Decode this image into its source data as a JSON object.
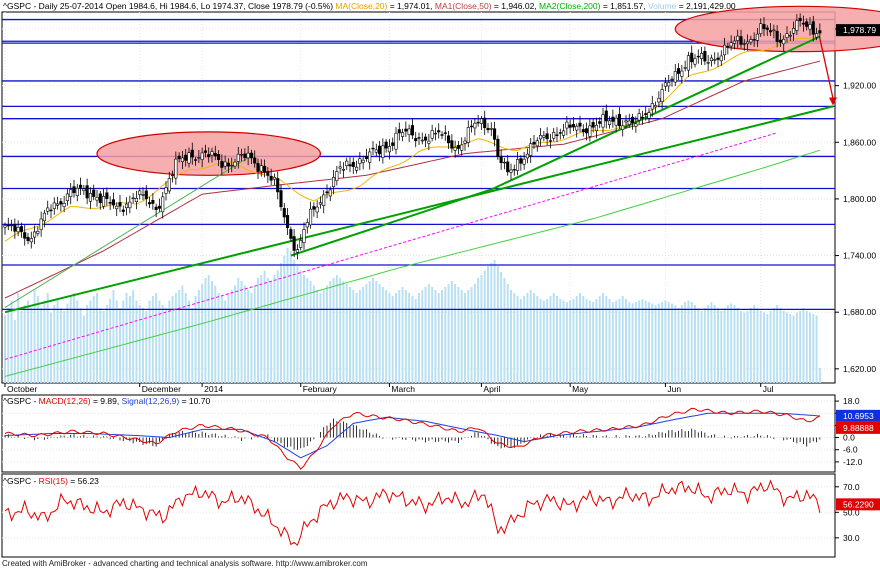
{
  "chart_data": [
    {
      "type": "candlestick",
      "symbol": "^GSPC",
      "header": {
        "symbol": "^GSPC",
        "desc": " - Daily 25-07-2014 Open 1984.6, Hi 1984.6, Lo 1974.37, Close 1978.79 (-0.5%) ",
        "ma_label": "MA(Close,20)",
        "ma_value": " = 1,974.01, ",
        "ma1_label": "MA1(Close,50)",
        "ma1_value": " = 1,946.02, ",
        "ma2_label": "MA2(Close,200)",
        "ma2_value": " = 1,851.57, ",
        "vol_label": "Volume",
        "vol_value": " = 2,191,429.00"
      },
      "last_close_label": "1,978.79",
      "y_ticks": [
        "1,980.00",
        "1,920.00",
        "1,860.00",
        "1,800.00",
        "1,740.00",
        "1,680.00",
        "1,620.00"
      ],
      "y_tick_values": [
        1980,
        1920,
        1860,
        1800,
        1740,
        1680,
        1620
      ],
      "ylim": [
        1605,
        1998
      ],
      "x_month_labels": [
        {
          "label": "October",
          "day": 0
        },
        {
          "label": "December",
          "day": 41
        },
        {
          "label": "2014",
          "day": 60
        },
        {
          "label": "February",
          "day": 90
        },
        {
          "label": "March",
          "day": 117
        },
        {
          "label": "April",
          "day": 145
        },
        {
          "label": "May",
          "day": 172
        },
        {
          "label": "Jun",
          "day": 201
        },
        {
          "label": "Jul",
          "day": 230
        }
      ],
      "horizontal_levels": [
        1990,
        1967,
        1965,
        1925,
        1898,
        1885,
        1845,
        1811,
        1773,
        1730,
        1683
      ],
      "close_path": [
        [
          0,
          1770
        ],
        [
          8,
          1760
        ],
        [
          14,
          1790
        ],
        [
          20,
          1808
        ],
        [
          28,
          1805
        ],
        [
          34,
          1788
        ],
        [
          40,
          1805
        ],
        [
          46,
          1790
        ],
        [
          52,
          1835
        ],
        [
          56,
          1848
        ],
        [
          62,
          1845
        ],
        [
          68,
          1838
        ],
        [
          74,
          1845
        ],
        [
          78,
          1835
        ],
        [
          82,
          1815
        ],
        [
          86,
          1770
        ],
        [
          89,
          1745
        ],
        [
          92,
          1775
        ],
        [
          96,
          1800
        ],
        [
          102,
          1830
        ],
        [
          108,
          1842
        ],
        [
          114,
          1850
        ],
        [
          120,
          1870
        ],
        [
          126,
          1865
        ],
        [
          132,
          1868
        ],
        [
          138,
          1855
        ],
        [
          144,
          1882
        ],
        [
          148,
          1878
        ],
        [
          150,
          1845
        ],
        [
          153,
          1825
        ],
        [
          156,
          1840
        ],
        [
          162,
          1860
        ],
        [
          168,
          1872
        ],
        [
          174,
          1875
        ],
        [
          180,
          1878
        ],
        [
          186,
          1885
        ],
        [
          192,
          1878
        ],
        [
          198,
          1905
        ],
        [
          204,
          1930
        ],
        [
          208,
          1950
        ],
        [
          214,
          1945
        ],
        [
          220,
          1962
        ],
        [
          226,
          1968
        ],
        [
          230,
          1980
        ],
        [
          236,
          1970
        ],
        [
          242,
          1985
        ],
        [
          248,
          1978.79
        ]
      ],
      "ma20_path": [
        [
          0,
          1755
        ],
        [
          20,
          1790
        ],
        [
          40,
          1795
        ],
        [
          56,
          1832
        ],
        [
          70,
          1838
        ],
        [
          84,
          1818
        ],
        [
          94,
          1798
        ],
        [
          108,
          1815
        ],
        [
          126,
          1850
        ],
        [
          144,
          1862
        ],
        [
          156,
          1852
        ],
        [
          174,
          1868
        ],
        [
          192,
          1880
        ],
        [
          208,
          1928
        ],
        [
          226,
          1955
        ],
        [
          248,
          1974.01
        ]
      ],
      "ma50_path": [
        [
          0,
          1695
        ],
        [
          30,
          1745
        ],
        [
          60,
          1805
        ],
        [
          84,
          1815
        ],
        [
          110,
          1825
        ],
        [
          140,
          1848
        ],
        [
          170,
          1858
        ],
        [
          200,
          1885
        ],
        [
          225,
          1925
        ],
        [
          248,
          1946.02
        ]
      ],
      "ma200_path": [
        [
          0,
          1612
        ],
        [
          60,
          1668
        ],
        [
          120,
          1727
        ],
        [
          180,
          1780
        ],
        [
          230,
          1832
        ],
        [
          248,
          1851.57
        ]
      ],
      "trendlines": [
        {
          "color": "#00a000",
          "width": 2,
          "points": [
            [
              0,
              1680
            ],
            [
              252,
              1898
            ]
          ]
        },
        {
          "color": "#00a000",
          "width": 2,
          "points": [
            [
              87,
              1740
            ],
            [
              148,
              1810
            ],
            [
              248,
              1972
            ]
          ]
        },
        {
          "color": "#4caf50",
          "width": 1,
          "points": [
            [
              0,
              1685
            ],
            [
              76,
              1848
            ]
          ]
        },
        {
          "color": "#ff00ff",
          "width": 1,
          "dash": true,
          "points": [
            [
              0,
              1630
            ],
            [
              235,
              1870
            ]
          ]
        }
      ],
      "ellipses": [
        [
          62,
          1848,
          34,
          23
        ],
        [
          242,
          1980,
          38,
          24
        ]
      ],
      "arrow": {
        "from": [
          248,
          1970
        ],
        "to": [
          252,
          1900
        ]
      },
      "volume_values": [
        0.45,
        0.5,
        0.55,
        0.42,
        0.6,
        0.48,
        0.52,
        0.55,
        0.5,
        0.62,
        0.58,
        0.5,
        0.55,
        0.6,
        0.47,
        0.52,
        0.56,
        0.5,
        0.48,
        0.53,
        0.58,
        0.6,
        0.55,
        0.5,
        0.45,
        0.52,
        0.55,
        0.58,
        0.6,
        0.5,
        0.48,
        0.52,
        0.56,
        0.62,
        0.55,
        0.5,
        0.55,
        0.6,
        0.58,
        0.62,
        0.55,
        0.52,
        0.5,
        0.48,
        0.55,
        0.58,
        0.6,
        0.55,
        0.52,
        0.5,
        0.55,
        0.58,
        0.6,
        0.62,
        0.65,
        0.6,
        0.55,
        0.5,
        0.58,
        0.62,
        0.66,
        0.7,
        0.72,
        0.68,
        0.65,
        0.6,
        0.58,
        0.55,
        0.6,
        0.62,
        0.65,
        0.7,
        0.68,
        0.65,
        0.62,
        0.6,
        0.65,
        0.7,
        0.72,
        0.75,
        0.7,
        0.68,
        0.72,
        0.75,
        0.8,
        0.85,
        0.9,
        0.88,
        0.82,
        0.78,
        0.75,
        0.72,
        0.7,
        0.68,
        0.65,
        0.62,
        0.6,
        0.62,
        0.65,
        0.68,
        0.7,
        0.72,
        0.7,
        0.68,
        0.66,
        0.64,
        0.62,
        0.6,
        0.62,
        0.64,
        0.66,
        0.68,
        0.7,
        0.68,
        0.66,
        0.64,
        0.62,
        0.6,
        0.58,
        0.6,
        0.62,
        0.64,
        0.62,
        0.6,
        0.58,
        0.56,
        0.6,
        0.62,
        0.64,
        0.66,
        0.64,
        0.62,
        0.6,
        0.62,
        0.64,
        0.66,
        0.68,
        0.66,
        0.64,
        0.62,
        0.6,
        0.62,
        0.64,
        0.66,
        0.7,
        0.72,
        0.75,
        0.78,
        0.8,
        0.82,
        0.78,
        0.74,
        0.7,
        0.66,
        0.62,
        0.6,
        0.58,
        0.56,
        0.58,
        0.6,
        0.62,
        0.6,
        0.58,
        0.56,
        0.55,
        0.56,
        0.58,
        0.6,
        0.58,
        0.56,
        0.55,
        0.54,
        0.55,
        0.56,
        0.58,
        0.6,
        0.58,
        0.56,
        0.55,
        0.54,
        0.56,
        0.58,
        0.6,
        0.58,
        0.56,
        0.54,
        0.55,
        0.56,
        0.58,
        0.56,
        0.54,
        0.53,
        0.54,
        0.55,
        0.56,
        0.55,
        0.54,
        0.53,
        0.52,
        0.53,
        0.54,
        0.55,
        0.54,
        0.53,
        0.52,
        0.5,
        0.52,
        0.54,
        0.55,
        0.54,
        0.52,
        0.5,
        0.48,
        0.5,
        0.52,
        0.54,
        0.52,
        0.5,
        0.48,
        0.5,
        0.52,
        0.53,
        0.52,
        0.5,
        0.48,
        0.47,
        0.48,
        0.5,
        0.52,
        0.5,
        0.48,
        0.47,
        0.46,
        0.48,
        0.5,
        0.52,
        0.5,
        0.48,
        0.47,
        0.46,
        0.45,
        0.47,
        0.48,
        0.5,
        0.48,
        0.47,
        0.46,
        0.45,
        0.1
      ]
    },
    {
      "type": "line",
      "indicator": "MACD",
      "header": {
        "symbol": "^GSPC",
        "macd_label": "MACD(12,26)",
        "macd_value": " = 9.89, ",
        "signal_label": "Signal(12,26,9)",
        "signal_value": " = 10.70"
      },
      "y_ticks": [
        "18.0",
        "12.0",
        "6.0",
        "0.0",
        "-6.0",
        "-12.0"
      ],
      "y_tick_values": [
        18,
        12,
        6,
        0,
        -6,
        -12
      ],
      "ylim": [
        -17,
        21
      ],
      "signal_box": "10.6953",
      "macd_box": "9.88888",
      "macd_path": [
        [
          0,
          2
        ],
        [
          10,
          1
        ],
        [
          20,
          3
        ],
        [
          30,
          2
        ],
        [
          40,
          -1
        ],
        [
          46,
          -3
        ],
        [
          52,
          3
        ],
        [
          60,
          6
        ],
        [
          70,
          4
        ],
        [
          80,
          0
        ],
        [
          86,
          -10
        ],
        [
          90,
          -15
        ],
        [
          94,
          -8
        ],
        [
          100,
          6
        ],
        [
          106,
          12
        ],
        [
          114,
          10
        ],
        [
          120,
          9
        ],
        [
          130,
          6
        ],
        [
          138,
          3
        ],
        [
          144,
          5
        ],
        [
          150,
          -3
        ],
        [
          156,
          -5
        ],
        [
          164,
          1
        ],
        [
          174,
          3
        ],
        [
          184,
          4
        ],
        [
          194,
          6
        ],
        [
          202,
          11
        ],
        [
          210,
          14
        ],
        [
          220,
          12
        ],
        [
          230,
          13
        ],
        [
          238,
          11
        ],
        [
          244,
          8
        ],
        [
          248,
          9.89
        ]
      ],
      "signal_path": [
        [
          0,
          1
        ],
        [
          14,
          2
        ],
        [
          26,
          2
        ],
        [
          40,
          1
        ],
        [
          50,
          0
        ],
        [
          60,
          4
        ],
        [
          72,
          4
        ],
        [
          82,
          -2
        ],
        [
          90,
          -10
        ],
        [
          98,
          -4
        ],
        [
          106,
          7
        ],
        [
          116,
          10
        ],
        [
          128,
          8
        ],
        [
          140,
          4
        ],
        [
          150,
          1
        ],
        [
          158,
          -2
        ],
        [
          168,
          1
        ],
        [
          180,
          3
        ],
        [
          192,
          5
        ],
        [
          204,
          9
        ],
        [
          214,
          12
        ],
        [
          226,
          12
        ],
        [
          236,
          12
        ],
        [
          248,
          10.7
        ]
      ]
    },
    {
      "type": "line",
      "indicator": "RSI",
      "header": {
        "symbol": "^GSPC",
        "rsi_label": "RSI(15)",
        "rsi_value": " = 56.23"
      },
      "y_ticks": [
        "70.0",
        "50.0",
        "30.0"
      ],
      "y_tick_values": [
        70,
        50,
        30
      ],
      "ylim": [
        15,
        80
      ],
      "rsi_box": "56.2290",
      "rsi_path": [
        [
          0,
          48
        ],
        [
          6,
          52
        ],
        [
          12,
          45
        ],
        [
          18,
          60
        ],
        [
          24,
          55
        ],
        [
          30,
          50
        ],
        [
          36,
          58
        ],
        [
          42,
          52
        ],
        [
          48,
          46
        ],
        [
          54,
          62
        ],
        [
          60,
          66
        ],
        [
          66,
          58
        ],
        [
          72,
          62
        ],
        [
          78,
          50
        ],
        [
          84,
          36
        ],
        [
          88,
          25
        ],
        [
          92,
          40
        ],
        [
          98,
          56
        ],
        [
          104,
          62
        ],
        [
          110,
          58
        ],
        [
          116,
          65
        ],
        [
          122,
          60
        ],
        [
          128,
          55
        ],
        [
          134,
          62
        ],
        [
          140,
          57
        ],
        [
          146,
          65
        ],
        [
          150,
          36
        ],
        [
          154,
          42
        ],
        [
          160,
          56
        ],
        [
          166,
          60
        ],
        [
          172,
          55
        ],
        [
          178,
          62
        ],
        [
          184,
          58
        ],
        [
          190,
          64
        ],
        [
          196,
          60
        ],
        [
          202,
          68
        ],
        [
          208,
          70
        ],
        [
          214,
          62
        ],
        [
          220,
          68
        ],
        [
          226,
          64
        ],
        [
          232,
          72
        ],
        [
          238,
          60
        ],
        [
          244,
          64
        ],
        [
          248,
          56.23
        ]
      ]
    }
  ],
  "footer": "Created with AmiBroker - advanced charting and technical analysis software. http://www.amibroker.com"
}
